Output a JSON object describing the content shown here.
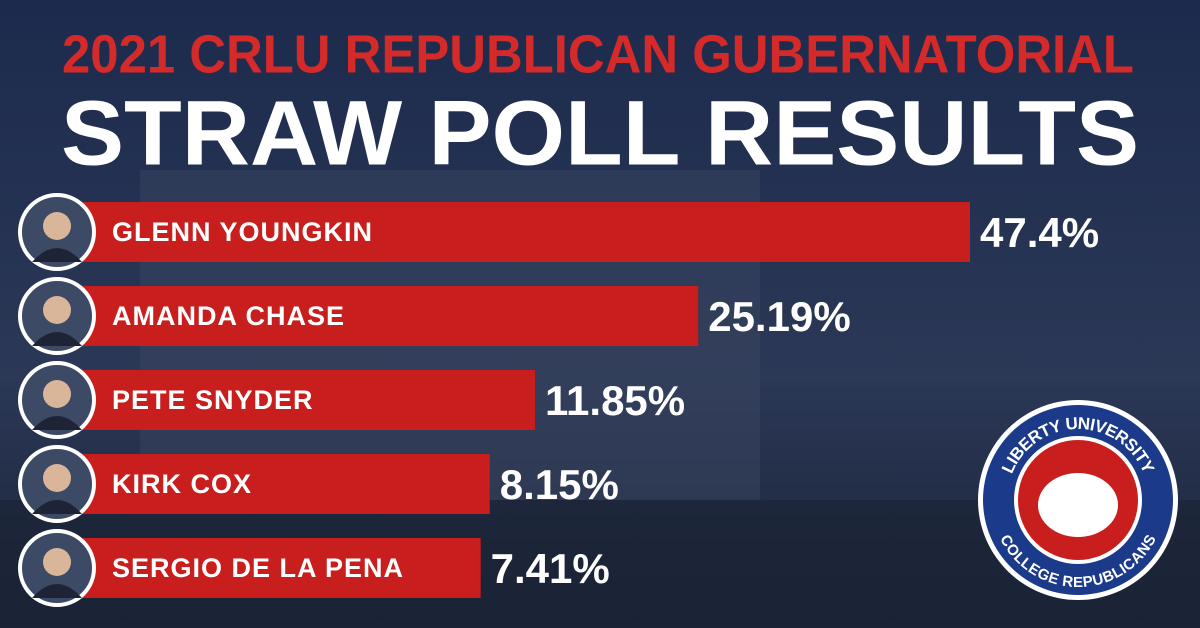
{
  "chart_data": {
    "type": "bar",
    "orientation": "horizontal",
    "title": "2021 CRLU REPUBLICAN GUBERNATORIAL",
    "subtitle": "STRAW POLL RESULTS",
    "categories": [
      "GLENN YOUNGKIN",
      "AMANDA CHASE",
      "PETE SNYDER",
      "KIRK COX",
      "SERGIO DE LA PENA"
    ],
    "values": [
      47.4,
      25.19,
      11.85,
      8.15,
      7.41
    ],
    "value_labels": [
      "47.4%",
      "25.19%",
      "11.85%",
      "8.15%",
      "7.41%"
    ],
    "color": "#c81e1e"
  },
  "logo": {
    "top": "LIBERTY UNIVERSITY",
    "bottom": "COLLEGE REPUBLICANS"
  }
}
